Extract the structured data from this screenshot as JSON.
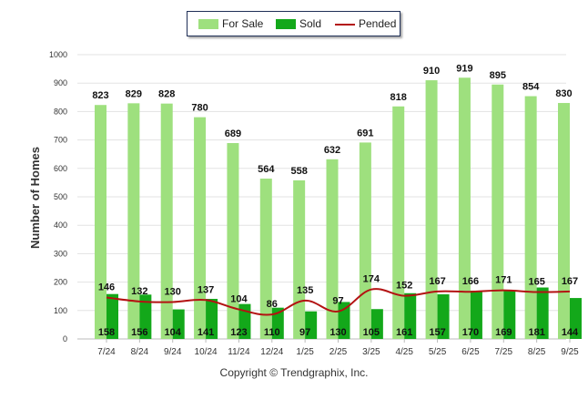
{
  "chart_data": {
    "type": "bar",
    "categories": [
      "7/24",
      "8/24",
      "9/24",
      "10/24",
      "11/24",
      "12/24",
      "1/25",
      "2/25",
      "3/25",
      "4/25",
      "5/25",
      "6/25",
      "7/25",
      "8/25",
      "9/25"
    ],
    "series": [
      {
        "name": "For Sale",
        "kind": "bar",
        "color": "#9ee07e",
        "values": [
          823,
          829,
          828,
          780,
          689,
          564,
          558,
          632,
          691,
          818,
          910,
          919,
          895,
          854,
          830
        ]
      },
      {
        "name": "Sold",
        "kind": "bar",
        "color": "#13a81a",
        "values": [
          158,
          156,
          104,
          141,
          123,
          110,
          97,
          130,
          105,
          161,
          157,
          170,
          169,
          181,
          144
        ]
      },
      {
        "name": "Pended",
        "kind": "line",
        "color": "#b31212",
        "values": [
          146,
          132,
          130,
          137,
          104,
          86,
          135,
          97,
          174,
          152,
          167,
          166,
          171,
          165,
          167
        ]
      }
    ],
    "ylabel": "Number of Homes",
    "xlabel": "",
    "ylim": [
      0,
      1000
    ],
    "yticks": [
      0,
      100,
      200,
      300,
      400,
      500,
      600,
      700,
      800,
      900,
      1000
    ],
    "grid": true,
    "legend": "top-center"
  },
  "copyright": "Copyright © Trendgraphix, Inc."
}
